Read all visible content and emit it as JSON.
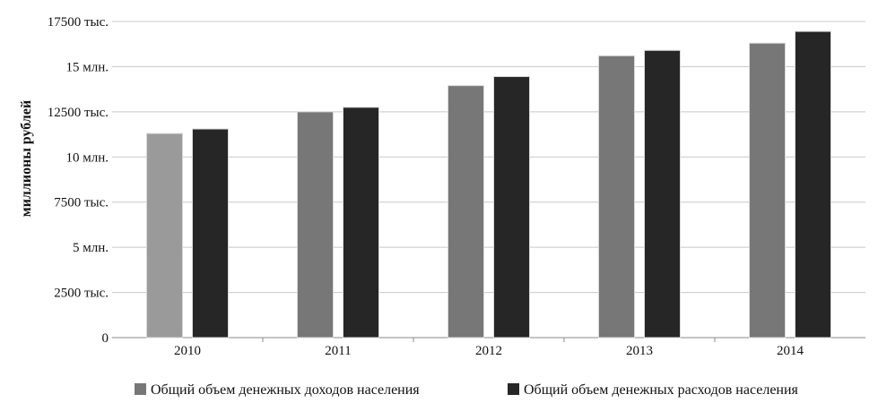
{
  "chart_data": {
    "type": "bar",
    "title": "",
    "xlabel": "",
    "ylabel": "миллионы рублей",
    "categories": [
      "2010",
      "2011",
      "2012",
      "2013",
      "2014"
    ],
    "series": [
      {
        "name": "Общий объем денежных доходов населения",
        "values": [
          11300000,
          12500000,
          13950000,
          15600000,
          16300000
        ],
        "colors": [
          "#9a9a9a",
          "#777777",
          "#777777",
          "#777777",
          "#777777"
        ]
      },
      {
        "name": "Общий объем денежных расходов населения",
        "values": [
          11550000,
          12750000,
          14450000,
          15900000,
          16950000
        ],
        "color": "#262626"
      }
    ],
    "ylim": [
      0,
      17500000
    ],
    "yticks": [
      {
        "value": 0,
        "label": "0"
      },
      {
        "value": 2500000,
        "label": "2500 тыс."
      },
      {
        "value": 5000000,
        "label": "5 млн."
      },
      {
        "value": 7500000,
        "label": "7500 тыс."
      },
      {
        "value": 10000000,
        "label": "10 млн."
      },
      {
        "value": 12500000,
        "label": "12500 тыс."
      },
      {
        "value": 15000000,
        "label": "15 млн."
      },
      {
        "value": 17500000,
        "label": "17500 тыс."
      }
    ],
    "grid": true,
    "legend_position": "bottom",
    "gridline_color": "#c8c8c8",
    "axis_color": "#888888"
  }
}
